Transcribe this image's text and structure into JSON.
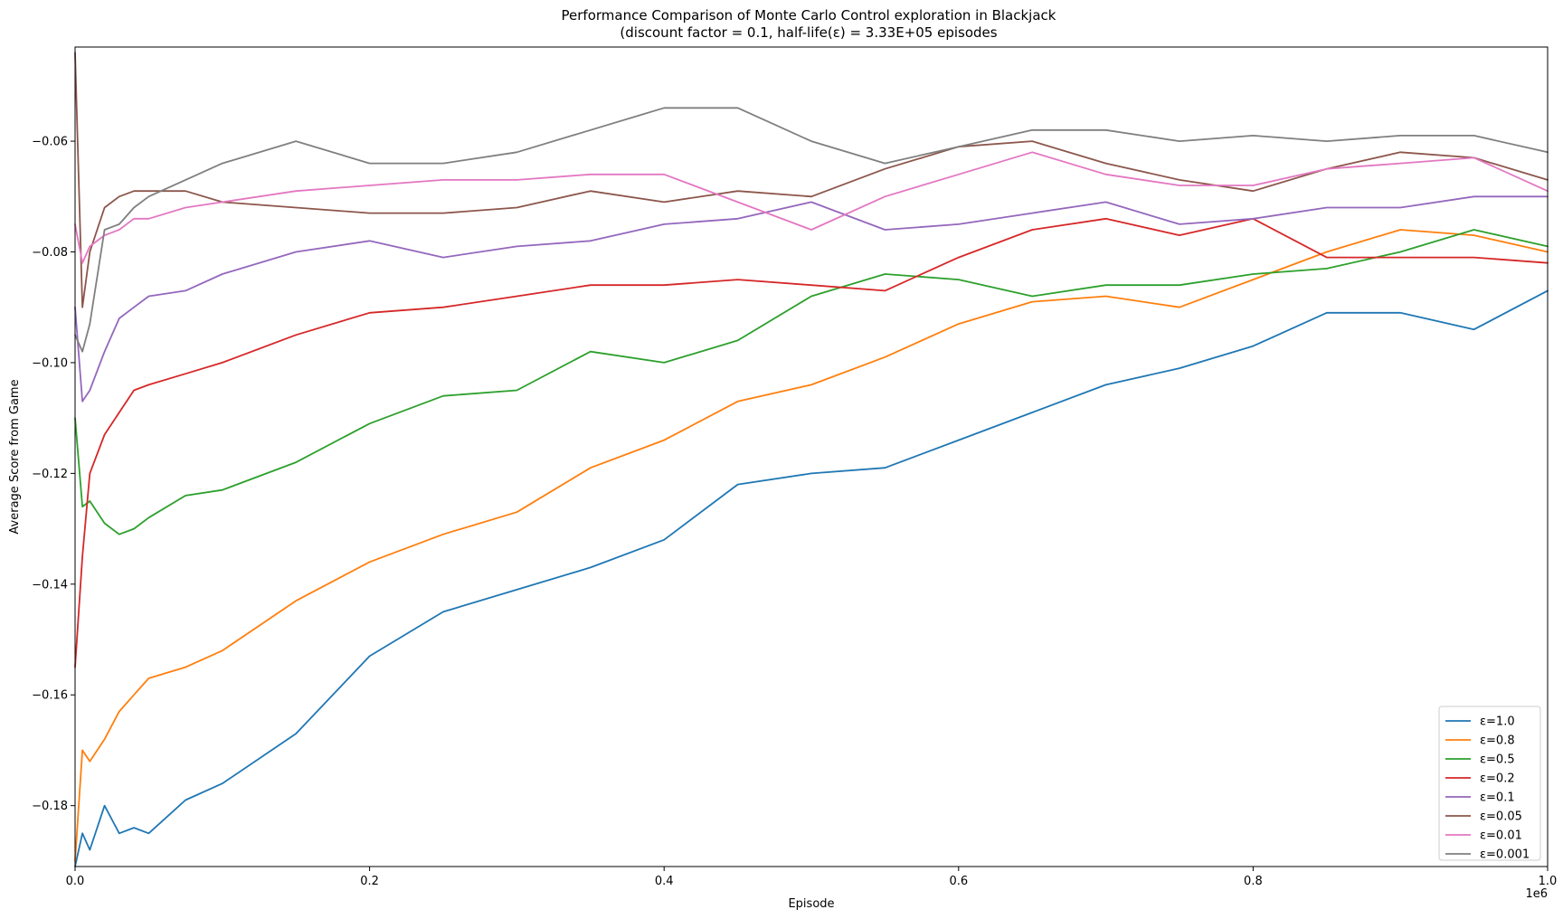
{
  "chart_data": {
    "type": "line",
    "title": "Performance Comparison of Monte Carlo Control exploration in Blackjack",
    "subtitle": "(discount factor = 0.1, half-life(ε) = 3.33E+05 episodes",
    "xlabel": "Episode",
    "ylabel": "Average Score from Game",
    "x_offset_label": "1e6",
    "xlim": [
      0,
      1000000
    ],
    "ylim": [
      -0.191,
      -0.043
    ],
    "xticks": [
      0,
      200000,
      400000,
      600000,
      800000,
      1000000
    ],
    "xtick_labels": [
      "0.0",
      "0.2",
      "0.4",
      "0.6",
      "0.8",
      "1.0"
    ],
    "yticks": [
      -0.18,
      -0.16,
      -0.14,
      -0.12,
      -0.1,
      -0.08,
      -0.06
    ],
    "ytick_labels": [
      "−0.18",
      "−0.16",
      "−0.14",
      "−0.12",
      "−0.10",
      "−0.08",
      "−0.06"
    ],
    "grid": false,
    "legend_position": "bottom-right",
    "x": [
      0,
      5000,
      10000,
      20000,
      30000,
      40000,
      50000,
      75000,
      100000,
      150000,
      200000,
      250000,
      300000,
      350000,
      400000,
      450000,
      500000,
      550000,
      600000,
      650000,
      700000,
      750000,
      800000,
      850000,
      900000,
      950000,
      1000000
    ],
    "series": [
      {
        "name": "ε=1.0",
        "color": "#1f77b4",
        "values": [
          -0.191,
          -0.185,
          -0.188,
          -0.18,
          -0.185,
          -0.184,
          -0.185,
          -0.179,
          -0.176,
          -0.167,
          -0.153,
          -0.145,
          -0.141,
          -0.137,
          -0.132,
          -0.122,
          -0.12,
          -0.119,
          -0.114,
          -0.109,
          -0.104,
          -0.101,
          -0.097,
          -0.091,
          -0.091,
          -0.094,
          -0.087
        ]
      },
      {
        "name": "ε=0.8",
        "color": "#ff7f0e",
        "values": [
          -0.19,
          -0.17,
          -0.172,
          -0.168,
          -0.163,
          -0.16,
          -0.157,
          -0.155,
          -0.152,
          -0.143,
          -0.136,
          -0.131,
          -0.127,
          -0.119,
          -0.114,
          -0.107,
          -0.104,
          -0.099,
          -0.093,
          -0.089,
          -0.088,
          -0.09,
          -0.085,
          -0.08,
          -0.076,
          -0.077,
          -0.08
        ]
      },
      {
        "name": "ε=0.5",
        "color": "#2ca02c",
        "values": [
          -0.11,
          -0.126,
          -0.125,
          -0.129,
          -0.131,
          -0.13,
          -0.128,
          -0.124,
          -0.123,
          -0.118,
          -0.111,
          -0.106,
          -0.105,
          -0.098,
          -0.1,
          -0.096,
          -0.088,
          -0.084,
          -0.085,
          -0.088,
          -0.086,
          -0.086,
          -0.084,
          -0.083,
          -0.08,
          -0.076,
          -0.079
        ]
      },
      {
        "name": "ε=0.2",
        "color": "#d62728",
        "values": [
          -0.155,
          -0.135,
          -0.12,
          -0.113,
          -0.109,
          -0.105,
          -0.104,
          -0.102,
          -0.1,
          -0.095,
          -0.091,
          -0.09,
          -0.088,
          -0.086,
          -0.086,
          -0.085,
          -0.086,
          -0.087,
          -0.081,
          -0.076,
          -0.074,
          -0.077,
          -0.074,
          -0.081,
          -0.081,
          -0.081,
          -0.082
        ]
      },
      {
        "name": "ε=0.1",
        "color": "#9467bd",
        "values": [
          -0.09,
          -0.107,
          -0.105,
          -0.098,
          -0.092,
          -0.09,
          -0.088,
          -0.087,
          -0.084,
          -0.08,
          -0.078,
          -0.081,
          -0.079,
          -0.078,
          -0.075,
          -0.074,
          -0.071,
          -0.076,
          -0.075,
          -0.073,
          -0.071,
          -0.075,
          -0.074,
          -0.072,
          -0.072,
          -0.07,
          -0.07
        ]
      },
      {
        "name": "ε=0.05",
        "color": "#8c564b",
        "values": [
          -0.044,
          -0.09,
          -0.08,
          -0.072,
          -0.07,
          -0.069,
          -0.069,
          -0.069,
          -0.071,
          -0.072,
          -0.073,
          -0.073,
          -0.072,
          -0.069,
          -0.071,
          -0.069,
          -0.07,
          -0.065,
          -0.061,
          -0.06,
          -0.064,
          -0.067,
          -0.069,
          -0.065,
          -0.062,
          -0.063,
          -0.067
        ]
      },
      {
        "name": "ε=0.01",
        "color": "#e377c2",
        "values": [
          -0.075,
          -0.082,
          -0.079,
          -0.077,
          -0.076,
          -0.074,
          -0.074,
          -0.072,
          -0.071,
          -0.069,
          -0.068,
          -0.067,
          -0.067,
          -0.066,
          -0.066,
          -0.071,
          -0.076,
          -0.07,
          -0.066,
          -0.062,
          -0.066,
          -0.068,
          -0.068,
          -0.065,
          -0.064,
          -0.063,
          -0.069
        ]
      },
      {
        "name": "ε=0.001",
        "color": "#7f7f7f",
        "values": [
          -0.095,
          -0.098,
          -0.093,
          -0.076,
          -0.075,
          -0.072,
          -0.07,
          -0.067,
          -0.064,
          -0.06,
          -0.064,
          -0.064,
          -0.062,
          -0.058,
          -0.054,
          -0.054,
          -0.06,
          -0.064,
          -0.061,
          -0.058,
          -0.058,
          -0.06,
          -0.059,
          -0.06,
          -0.059,
          -0.059,
          -0.062
        ]
      }
    ]
  }
}
